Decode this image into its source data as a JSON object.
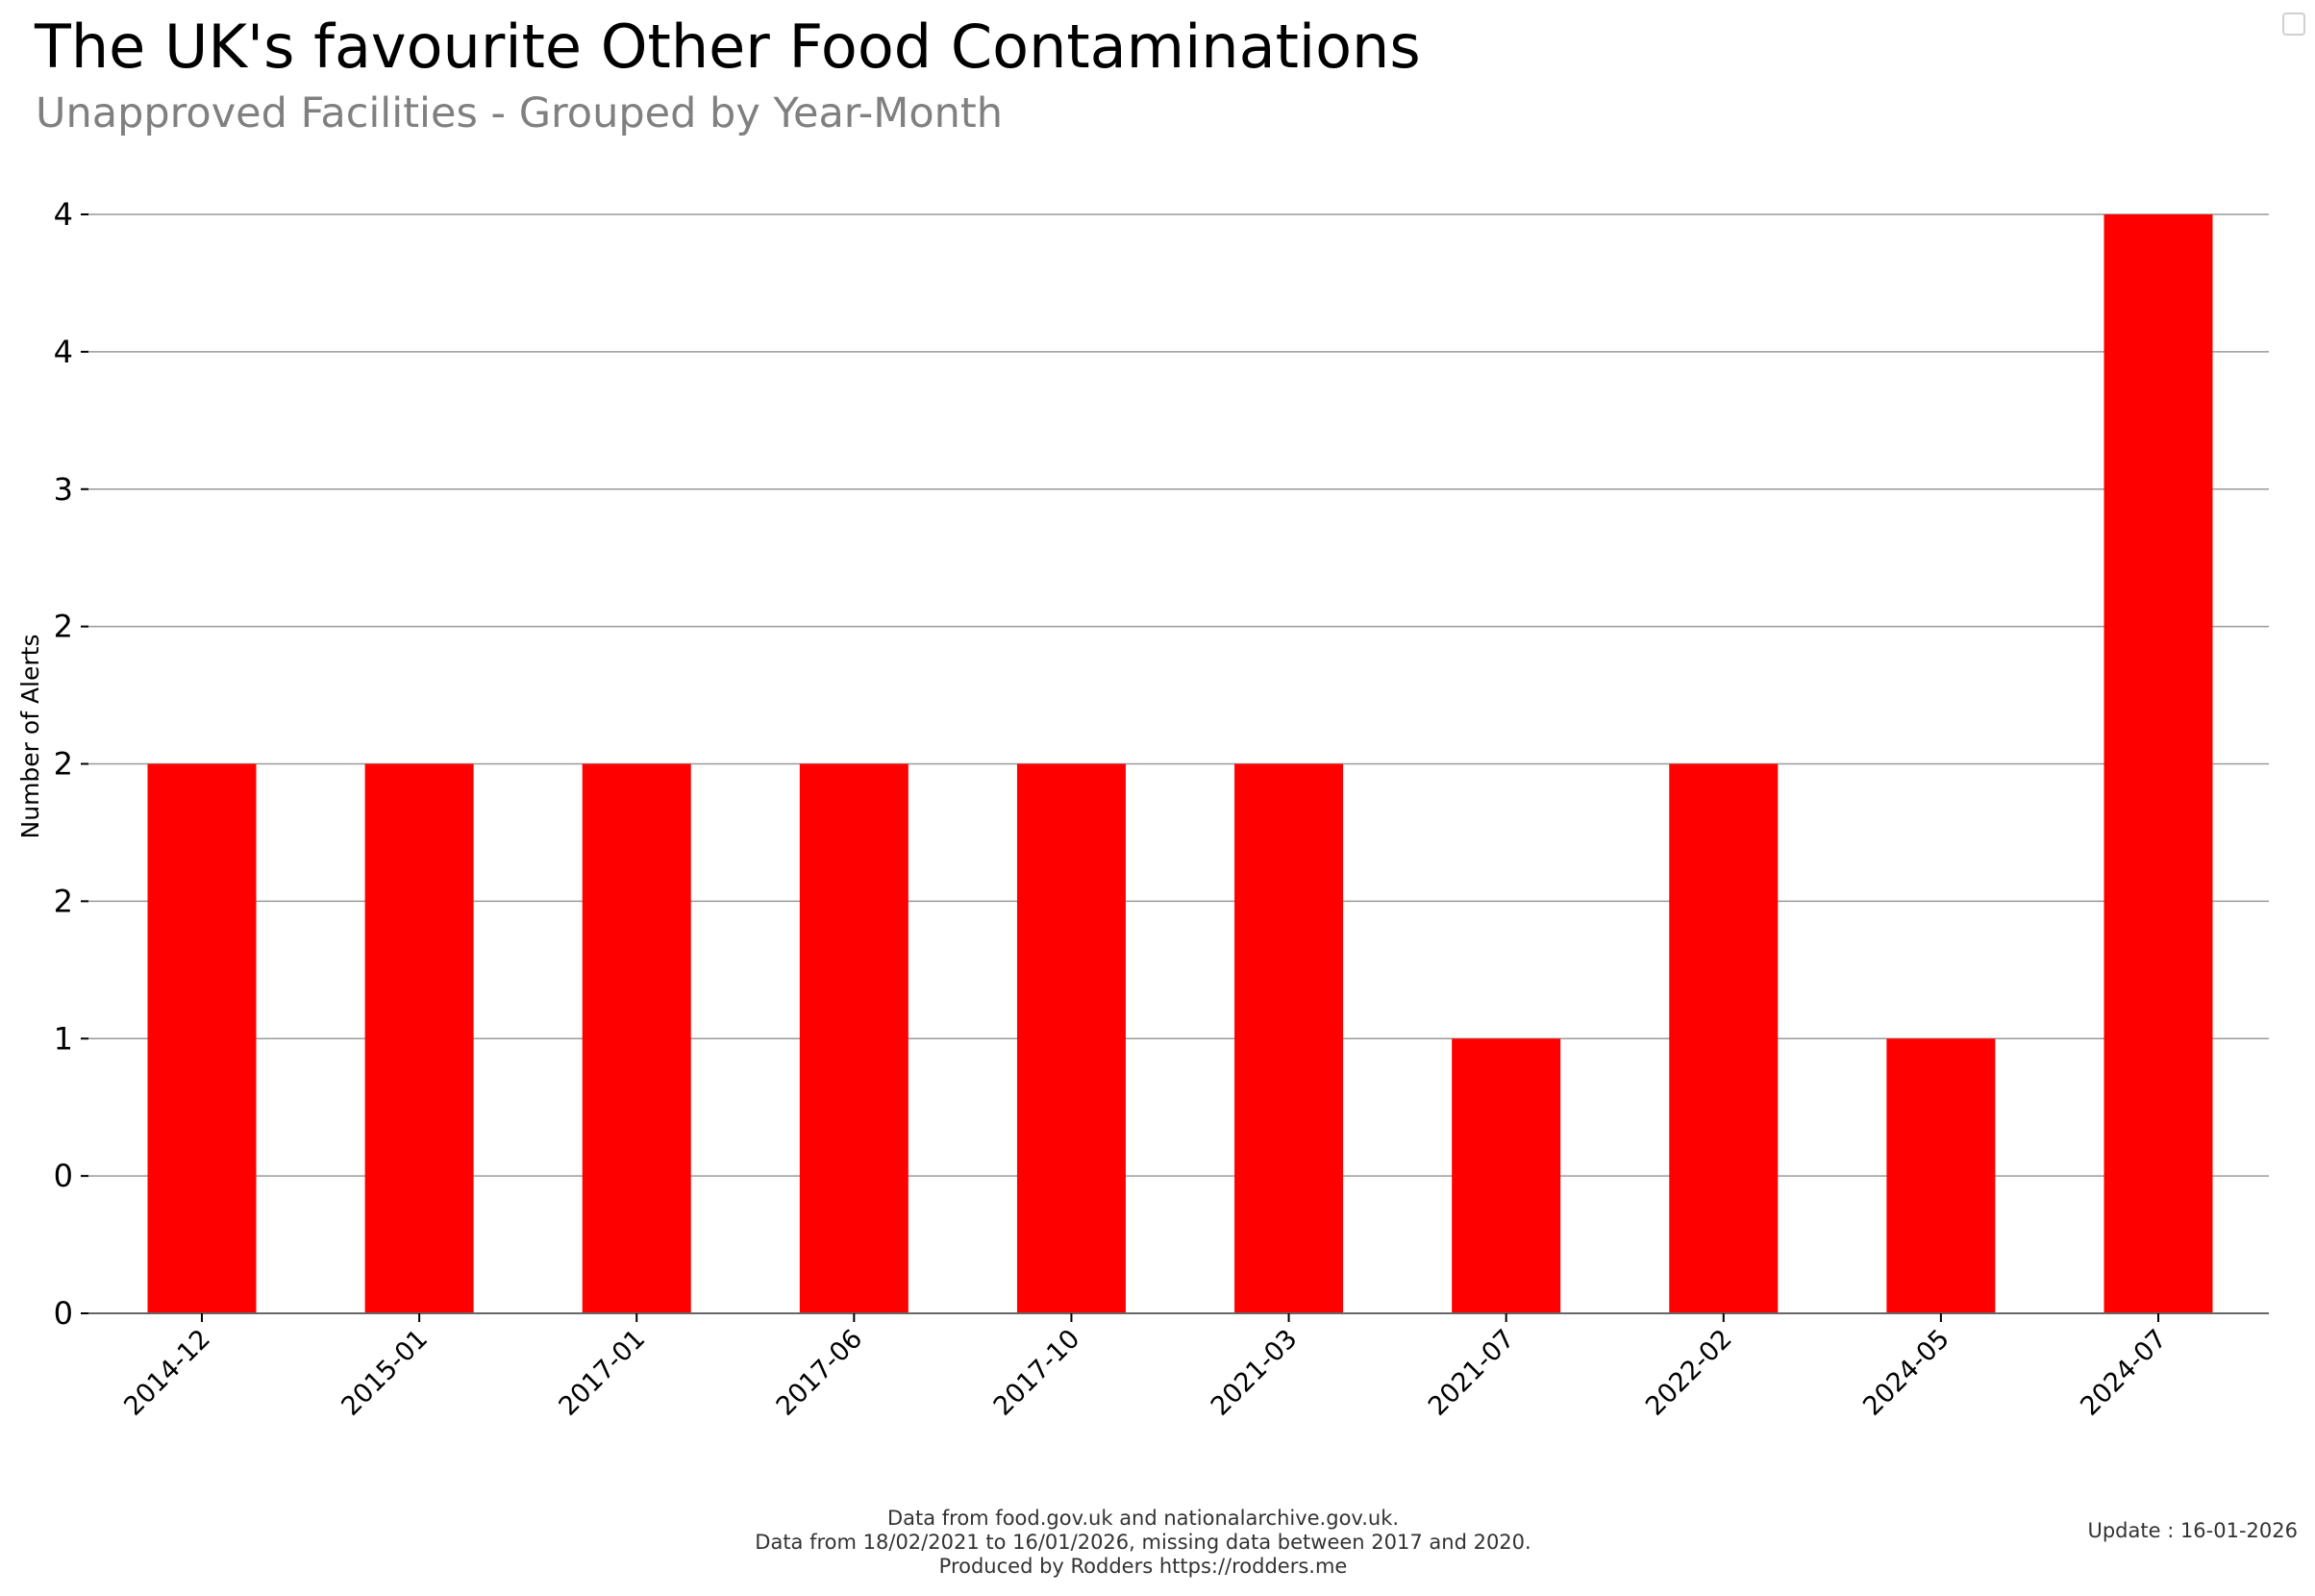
{
  "chart_data": {
    "type": "bar",
    "title": "The UK's favourite Other Food Contaminations",
    "subtitle": "Unapproved Facilities - Grouped by Year-Month",
    "xlabel": "",
    "ylabel": "Number of Alerts",
    "categories": [
      "2014-12",
      "2015-01",
      "2017-01",
      "2017-06",
      "2017-10",
      "2021-03",
      "2021-07",
      "2022-02",
      "2024-05",
      "2024-07"
    ],
    "values": [
      2,
      2,
      2,
      2,
      2,
      2,
      1,
      2,
      1,
      4
    ],
    "ylim": [
      0,
      4
    ],
    "yticks": [
      0,
      0.5,
      1,
      1.5,
      2,
      2.5,
      3,
      3.5,
      4
    ],
    "ytick_labels": [
      "0",
      "0",
      "1",
      "2",
      "2",
      "2",
      "3",
      "4",
      "4"
    ],
    "grid": true,
    "bar_color": "#ff0000",
    "grid_color": "#999999"
  },
  "footer": {
    "line1": "Data from food.gov.uk and nationalarchive.gov.uk.",
    "line2": "Data from 18/02/2021 to 16/01/2026, missing data between 2017 and 2020.",
    "line3": "Produced by Rodders https://rodders.me"
  },
  "update": "Update : 16-01-2026"
}
